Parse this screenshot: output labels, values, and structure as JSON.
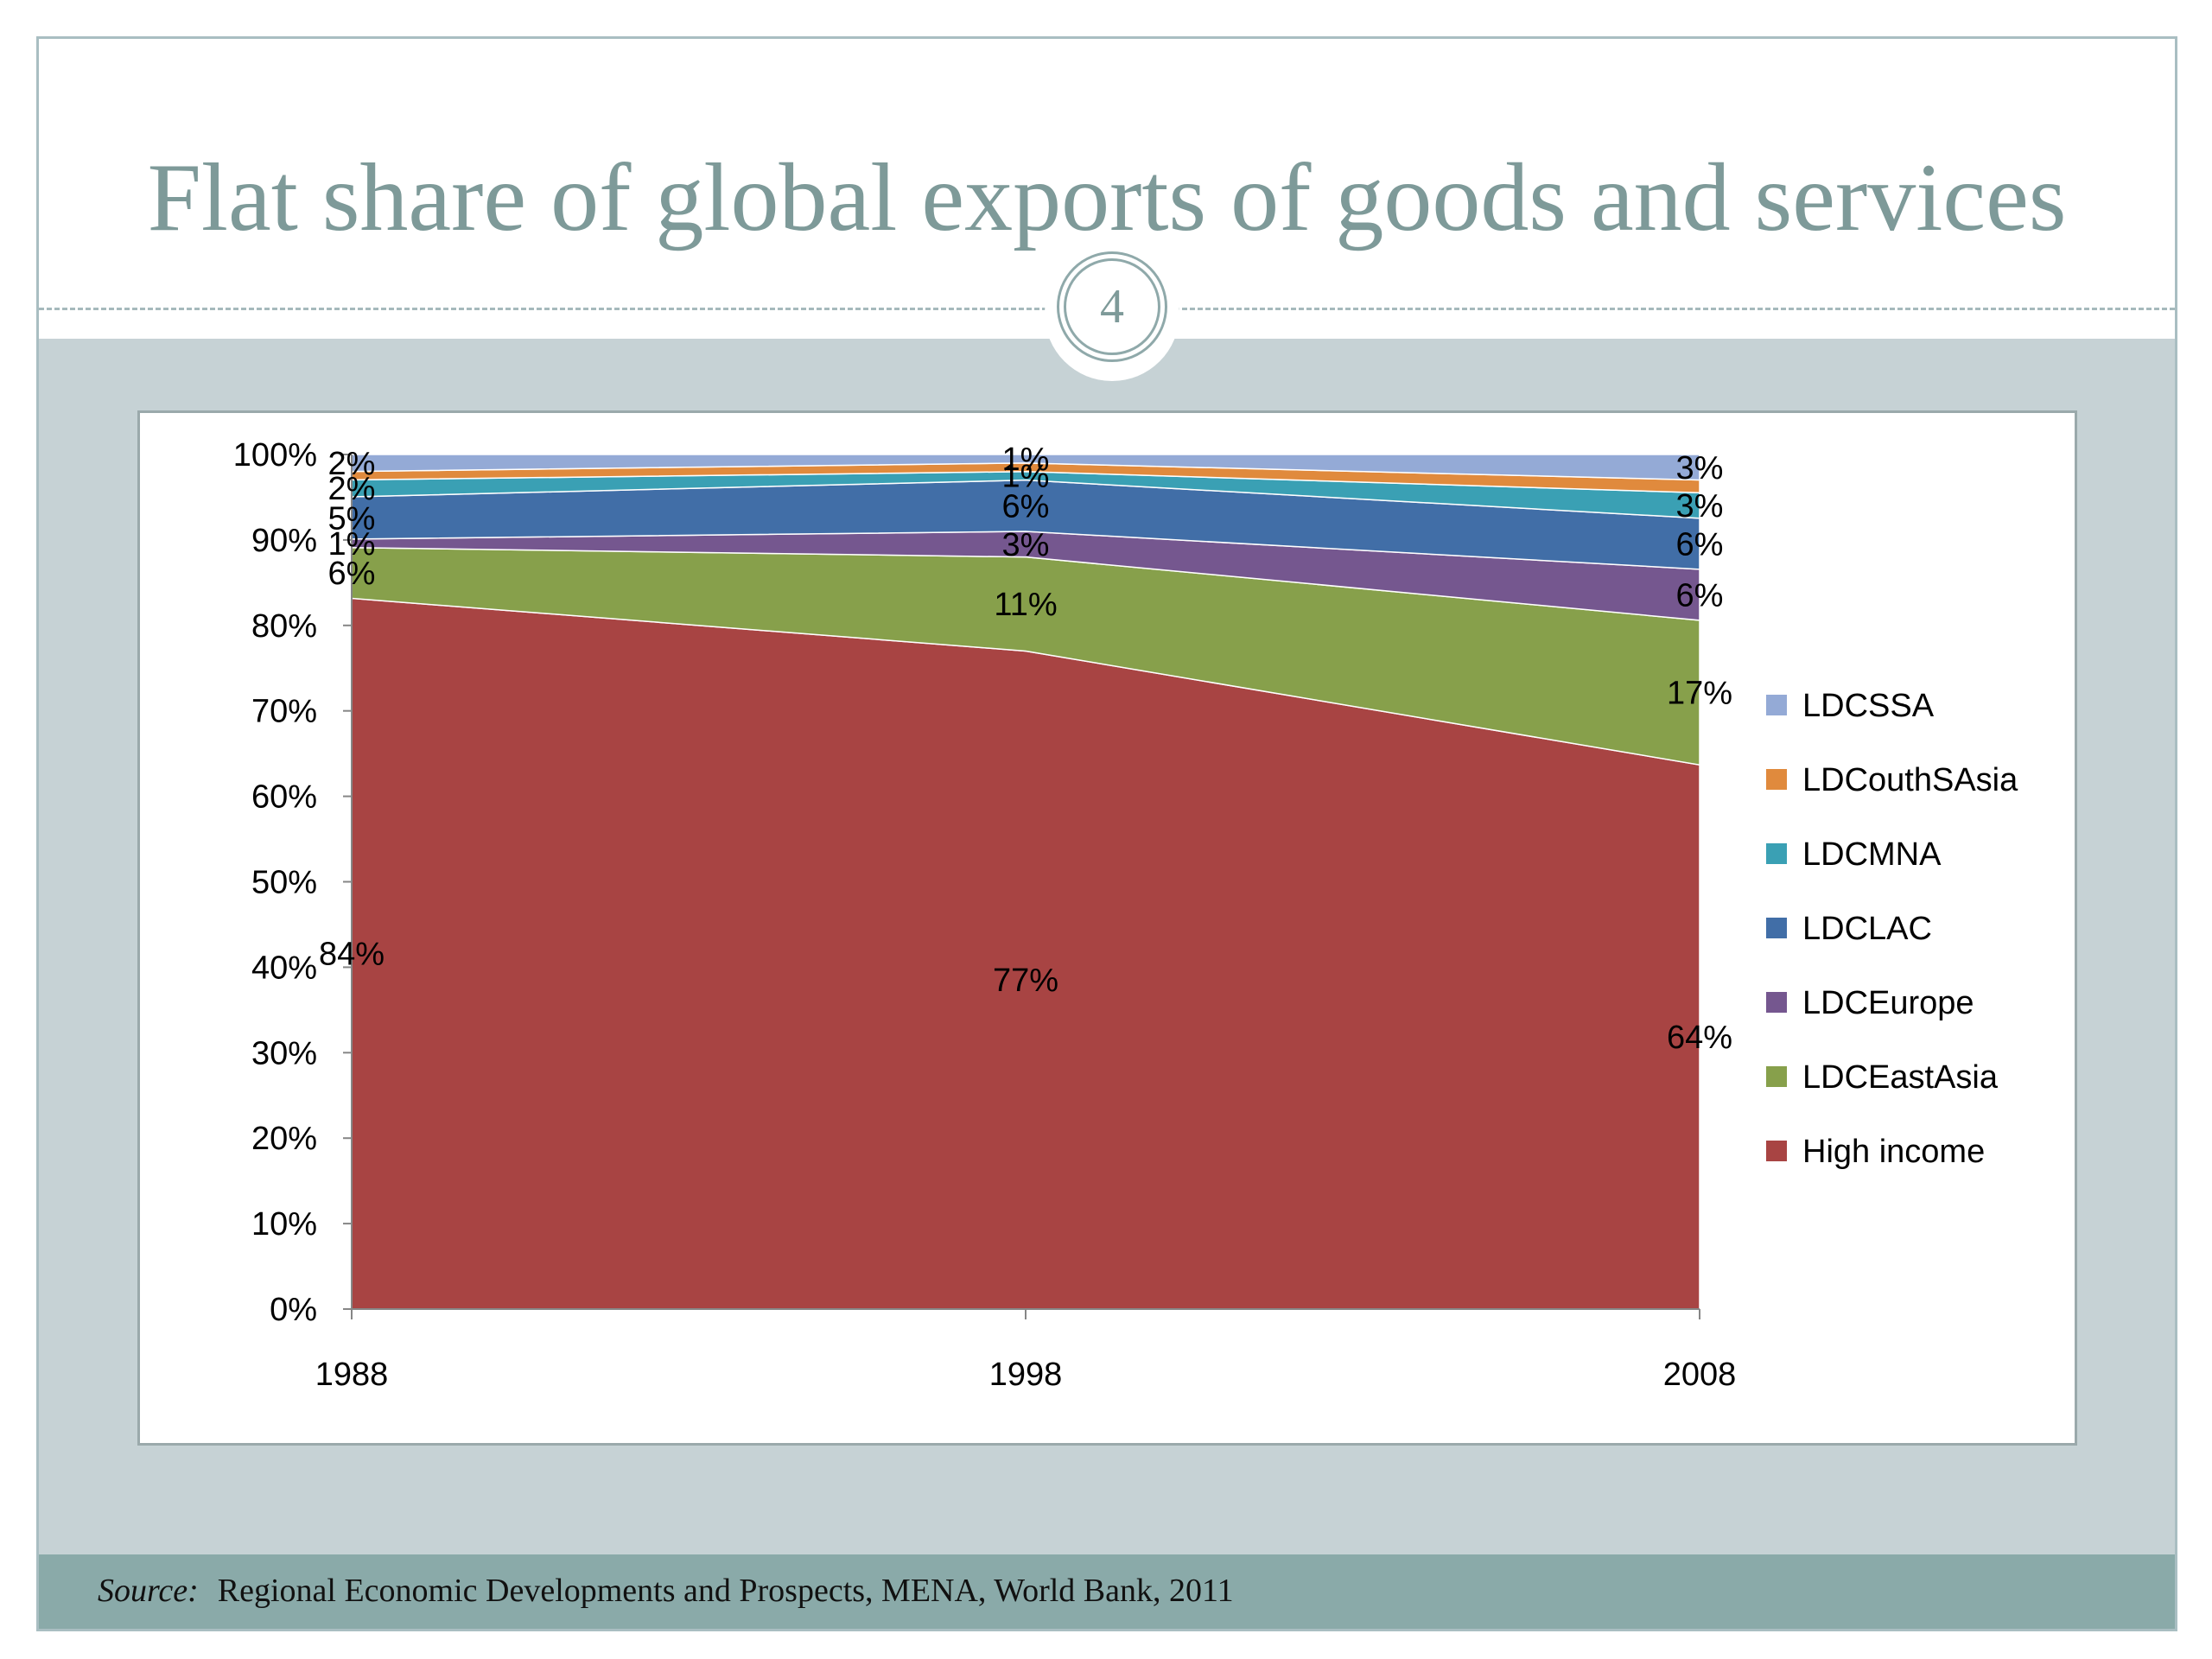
{
  "slide": {
    "title": "Flat share of global exports of goods and services",
    "page_number": "4",
    "source_label": "Source:",
    "source_text": "Regional Economic Developments and Prospects, MENA, World Bank, 2011"
  },
  "colors": {
    "title": "#7e9a99",
    "panel": "#c6d2d5",
    "footer": "#8aaaa9"
  },
  "chart_data": {
    "type": "area",
    "stacked": "percent",
    "x": [
      "1988",
      "1998",
      "2008"
    ],
    "y_ticks": [
      "0%",
      "10%",
      "20%",
      "30%",
      "40%",
      "50%",
      "60%",
      "70%",
      "80%",
      "90%",
      "100%"
    ],
    "ylim": [
      0,
      100
    ],
    "legend_position": "right",
    "series": [
      {
        "name": "High income",
        "color": "#a84443",
        "values": [
          84,
          77,
          64
        ],
        "labels": [
          "84%",
          "77%",
          "64%"
        ]
      },
      {
        "name": "LDCEastAsia",
        "color": "#87a04b",
        "values": [
          6,
          11,
          17
        ],
        "labels": [
          "6%",
          "11%",
          "17%"
        ]
      },
      {
        "name": "LDCEurope",
        "color": "#75578f",
        "values": [
          1,
          3,
          6
        ],
        "labels": [
          "1%",
          "3%",
          "6%"
        ]
      },
      {
        "name": "LDCLAC",
        "color": "#416ea7",
        "values": [
          5,
          6,
          6
        ],
        "labels": [
          "5%",
          "6%",
          "6%"
        ]
      },
      {
        "name": "LDCMNA",
        "color": "#3aa0b4",
        "values": [
          2,
          1,
          3
        ],
        "labels": [
          "2%",
          "1%",
          "3%"
        ]
      },
      {
        "name": "LDCouthSAsia",
        "color": "#e08a3d",
        "values": [
          1,
          1,
          1.5
        ],
        "labels": [
          "",
          "",
          ""
        ]
      },
      {
        "name": "LDCSSA",
        "color": "#94aad6",
        "values": [
          2,
          1,
          3
        ],
        "labels": [
          "2%",
          "1%",
          "3%"
        ]
      }
    ]
  }
}
